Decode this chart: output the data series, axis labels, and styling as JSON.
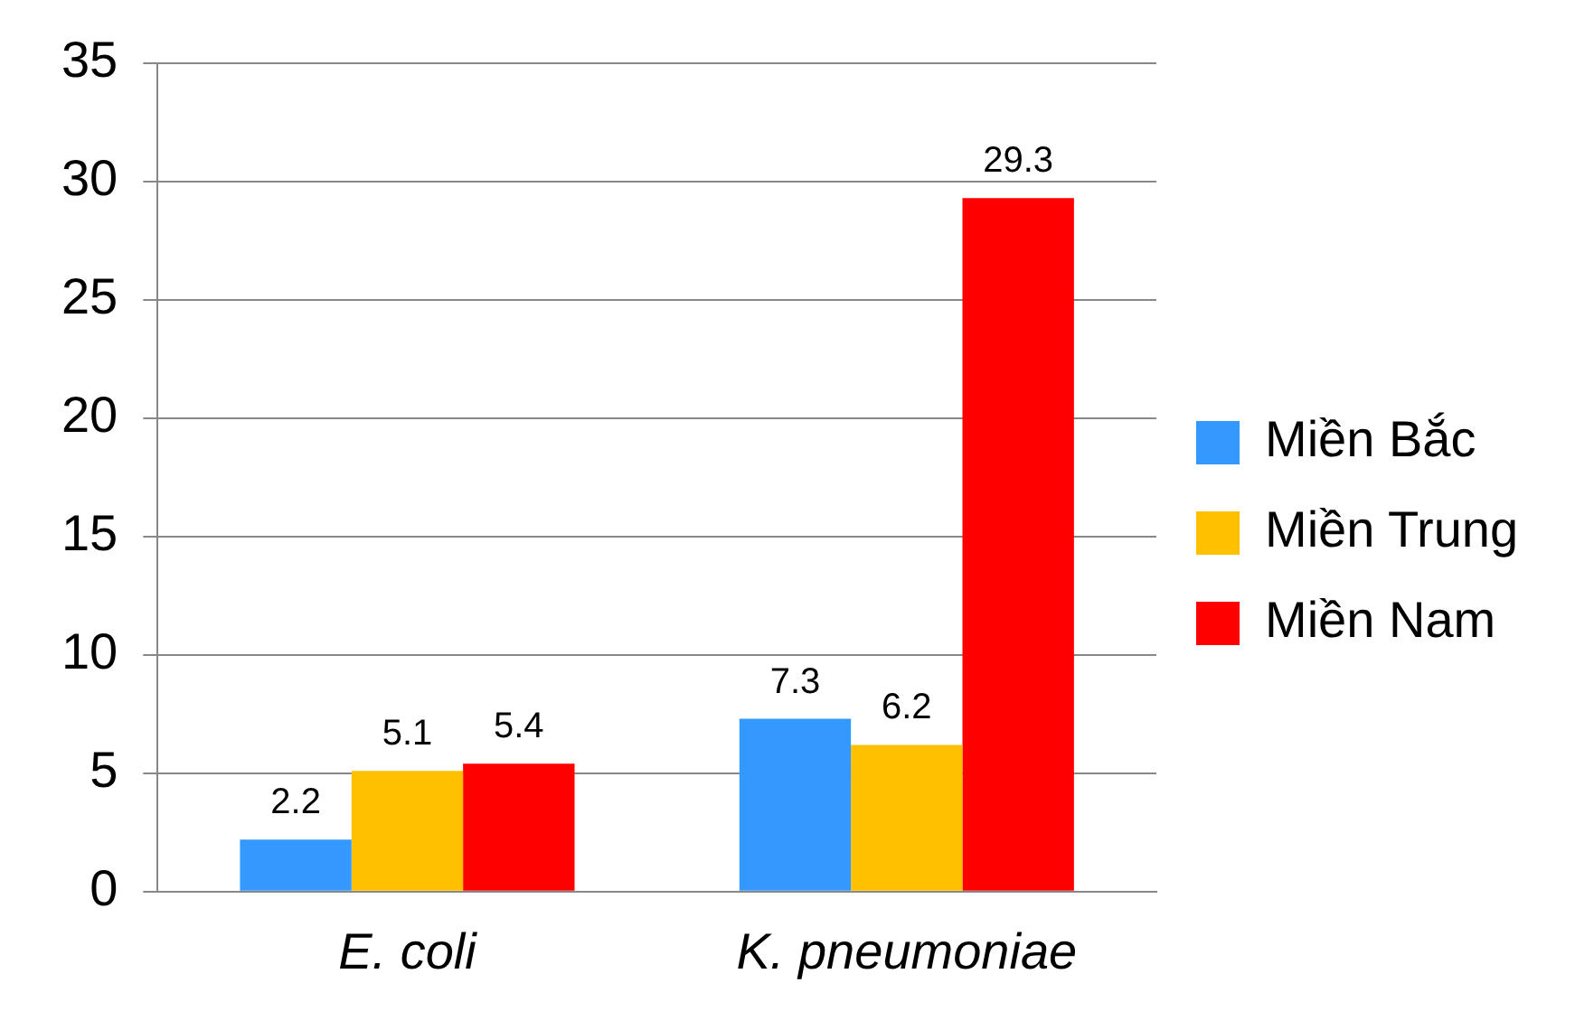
{
  "chart_data": {
    "type": "bar",
    "categories": [
      "E. coli",
      "K. pneumoniae"
    ],
    "series": [
      {
        "name": "Miền Bắc",
        "color": "#3399ff",
        "values": [
          2.2,
          7.3
        ]
      },
      {
        "name": "Miền Trung",
        "color": "#ffc000",
        "values": [
          5.1,
          6.2
        ]
      },
      {
        "name": "Miền Nam",
        "color": "#ff0000",
        "values": [
          5.4,
          29.3
        ]
      }
    ],
    "ylim": [
      0,
      35
    ],
    "yticks": [
      0,
      5,
      10,
      15,
      20,
      25,
      30,
      35
    ],
    "grid": "y",
    "legend": "right",
    "data_labels": true
  }
}
